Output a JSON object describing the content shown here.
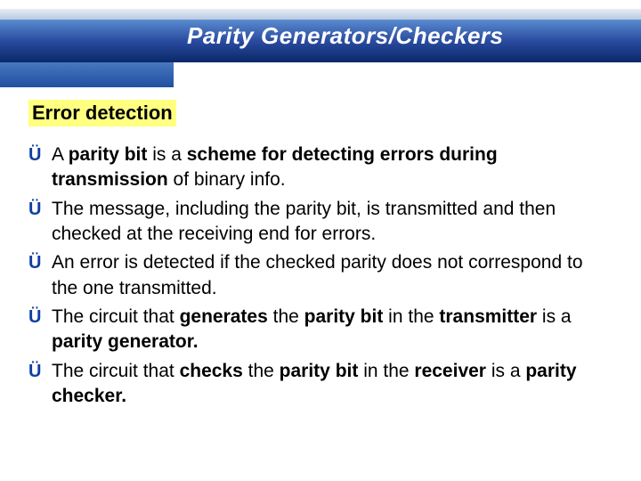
{
  "colors": {
    "header_gradient_top": "#5a8cd0",
    "header_gradient_mid": "#2a4ba0",
    "header_gradient_bottom": "#0a2968",
    "bullet_color": "#1040a0",
    "highlight_bg": "#ffff80",
    "text_color": "#000000",
    "title_color": "#ffffff",
    "background": "#ffffff"
  },
  "typography": {
    "title_fontsize": 26,
    "section_fontsize": 22,
    "body_fontsize": 21,
    "font_family": "Verdana"
  },
  "slide": {
    "title": "Parity Generators/Checkers",
    "section_heading": "Error detection",
    "bullet_glyph": "Ü",
    "bullets": [
      {
        "html": "A <b>parity bit</b> is a <b>scheme for detecting errors during transmission</b> of binary info."
      },
      {
        "html": "The message, including the parity bit, is transmitted and then checked at the receiving end for errors."
      },
      {
        "html": "An error is detected if the checked parity does not correspond to the one transmitted."
      },
      {
        "html": "The circuit that <b>generates</b> the <b>parity bit</b> in the <b>transmitter</b> is a <b>parity generator.</b>"
      },
      {
        "html": "The circuit that <b>checks</b> the <b>parity bit</b> in the <b>receiver</b> is a <b>parity checker.</b>"
      }
    ]
  }
}
